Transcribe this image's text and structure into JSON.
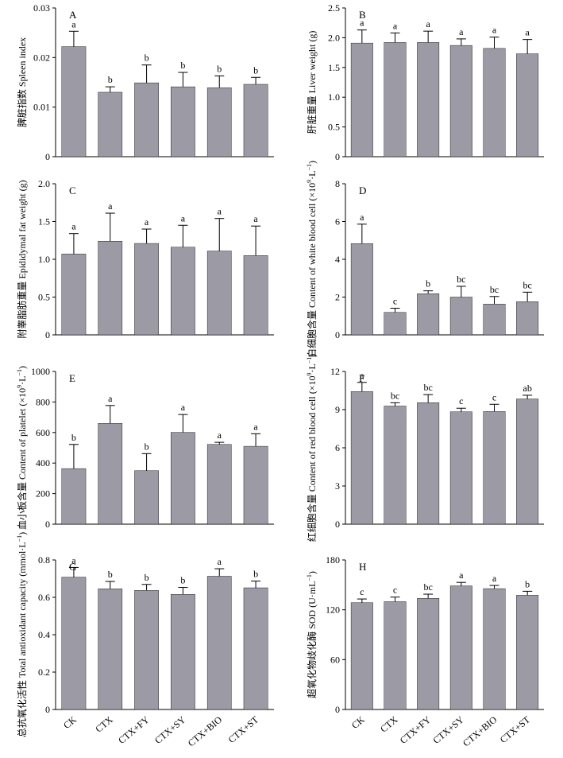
{
  "figure": {
    "categories": [
      "CK",
      "CTX",
      "CTX+FY",
      "CTX+SY",
      "CTX+BIO",
      "CTX+ST"
    ],
    "bar_color": "#9b9aa5",
    "axis_color": "#000000"
  },
  "chart_data": [
    {
      "panel": "A",
      "type": "bar",
      "ylabel_cn": "脾脏指数",
      "ylabel_en": "Spleen index",
      "ylim": [
        0,
        0.03
      ],
      "yticks": [
        "0",
        "0.01",
        "0.02",
        "0.03"
      ],
      "values": [
        0.0222,
        0.013,
        0.0149,
        0.0141,
        0.0139,
        0.0146
      ],
      "errors": [
        0.0031,
        0.0011,
        0.0036,
        0.0029,
        0.0024,
        0.0014
      ],
      "letters": [
        "a",
        "b",
        "b",
        "b",
        "b",
        "b"
      ]
    },
    {
      "panel": "B",
      "type": "bar",
      "ylabel_cn": "肝脏重量",
      "ylabel_en": "Liver weight (g)",
      "ylim": [
        0,
        2.5
      ],
      "yticks": [
        "0",
        "0.5",
        "1.0",
        "1.5",
        "2.0",
        "2.5"
      ],
      "values": [
        1.91,
        1.92,
        1.92,
        1.87,
        1.82,
        1.73
      ],
      "errors": [
        0.22,
        0.16,
        0.19,
        0.11,
        0.19,
        0.24
      ],
      "letters": [
        "a",
        "a",
        "a",
        "a",
        "a",
        "a"
      ]
    },
    {
      "panel": "C",
      "type": "bar",
      "ylabel_cn": "附睾脂肪重量",
      "ylabel_en": "Epididymal fat weight (g)",
      "ylim": [
        0,
        2.0
      ],
      "yticks": [
        "0",
        "0.5",
        "1.0",
        "1.5",
        "2.0"
      ],
      "values": [
        1.07,
        1.24,
        1.21,
        1.16,
        1.11,
        1.05
      ],
      "errors": [
        0.27,
        0.37,
        0.19,
        0.29,
        0.43,
        0.39
      ],
      "letters": [
        "a",
        "a",
        "a",
        "a",
        "a",
        "a"
      ]
    },
    {
      "panel": "D",
      "type": "bar",
      "ylabel_cn": "白细胞含量",
      "ylabel_en": "Content of white blood cell (×10",
      "ylabel_sup1": "9",
      "ylabel_mid": "·L",
      "ylabel_sup2": "−1",
      "ylabel_end": ")",
      "ylim": [
        0,
        8
      ],
      "yticks": [
        "0",
        "2",
        "4",
        "6",
        "8"
      ],
      "values": [
        4.83,
        1.19,
        2.18,
        2.0,
        1.63,
        1.76
      ],
      "errors": [
        1.03,
        0.22,
        0.15,
        0.57,
        0.4,
        0.5
      ],
      "letters": [
        "a",
        "c",
        "b",
        "bc",
        "bc",
        "bc"
      ]
    },
    {
      "panel": "E",
      "type": "bar",
      "ylabel_cn": "血小板含量",
      "ylabel_en": "Content of platelet (×10",
      "ylabel_sup1": "9",
      "ylabel_mid": "·L",
      "ylabel_sup2": "−1",
      "ylabel_end": ")",
      "ylim": [
        0,
        1000
      ],
      "yticks": [
        "0",
        "200",
        "400",
        "600",
        "800",
        "1000"
      ],
      "values": [
        364,
        660,
        350,
        601,
        522,
        510
      ],
      "errors": [
        158,
        117,
        112,
        117,
        14,
        82
      ],
      "letters": [
        "b",
        "a",
        "b",
        "a",
        "a",
        "a"
      ]
    },
    {
      "panel": "F",
      "type": "bar",
      "ylabel_cn": "红细胞含量",
      "ylabel_en": "Content of red blood cell (×10",
      "ylabel_sup1": "9",
      "ylabel_mid": "·L",
      "ylabel_sup2": "−1",
      "ylabel_end": ")",
      "ylim": [
        0,
        12
      ],
      "yticks": [
        "0",
        "3",
        "6",
        "9",
        "12"
      ],
      "values": [
        10.42,
        9.28,
        9.55,
        8.83,
        8.85,
        9.84
      ],
      "errors": [
        0.72,
        0.26,
        0.63,
        0.28,
        0.57,
        0.29
      ],
      "letters": [
        "a",
        "bc",
        "bc",
        "c",
        "c",
        "ab"
      ]
    },
    {
      "panel": "G",
      "type": "bar",
      "ylabel_cn": "总抗氧化活性",
      "ylabel_en": "Total antioxidant capacity (mmol·L",
      "ylabel_sup2": "−1",
      "ylabel_end": ")",
      "ylim": [
        0,
        0.8
      ],
      "yticks": [
        "0",
        "0.2",
        "0.4",
        "0.6",
        "0.8"
      ],
      "values": [
        0.708,
        0.646,
        0.637,
        0.616,
        0.713,
        0.651
      ],
      "errors": [
        0.052,
        0.039,
        0.032,
        0.037,
        0.04,
        0.036
      ],
      "letters": [
        "a",
        "b",
        "b",
        "b",
        "a",
        "b"
      ]
    },
    {
      "panel": "H",
      "type": "bar",
      "ylabel_cn": "超氧化物歧化酶",
      "ylabel_en": "SOD (U·mL",
      "ylabel_sup2": "−1",
      "ylabel_end": ")",
      "ylim": [
        0,
        180
      ],
      "yticks": [
        "0",
        "60",
        "120",
        "180"
      ],
      "values": [
        128.5,
        129.8,
        133.8,
        148.8,
        145.5,
        137.5
      ],
      "errors": [
        4.5,
        5.5,
        5.0,
        4.2,
        3.8,
        4.8
      ],
      "letters": [
        "c",
        "c",
        "bc",
        "a",
        "a",
        "b"
      ]
    }
  ]
}
